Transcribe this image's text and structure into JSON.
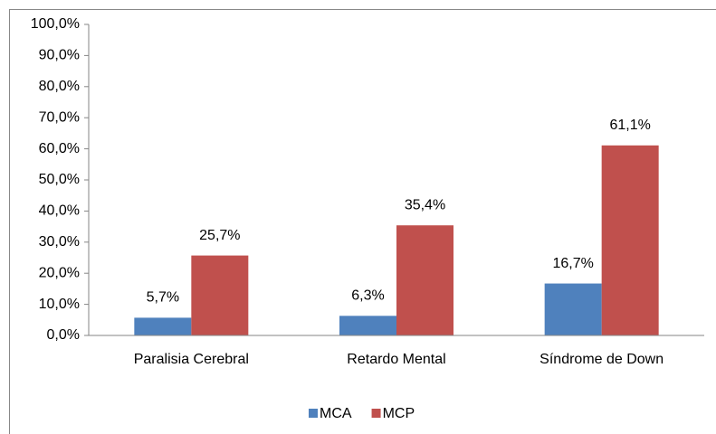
{
  "chart_data": {
    "type": "bar",
    "categories": [
      "Paralisia Cerebral",
      "Retardo Mental",
      "Síndrome de Down"
    ],
    "series": [
      {
        "name": "MCA",
        "color": "#4f81bd",
        "values": [
          5.7,
          6.3,
          16.7
        ],
        "value_labels": [
          "5,7%",
          "6,3%",
          "16,7%"
        ]
      },
      {
        "name": "MCP",
        "color": "#c0504d",
        "values": [
          25.7,
          35.4,
          61.1
        ],
        "value_labels": [
          "25,7%",
          "35,4%",
          "61,1%"
        ]
      }
    ],
    "ylim": [
      0,
      100
    ],
    "yticks": [
      {
        "value": 0,
        "label": "0,0%"
      },
      {
        "value": 10,
        "label": "10,0%"
      },
      {
        "value": 20,
        "label": "20,0%"
      },
      {
        "value": 30,
        "label": "30,0%"
      },
      {
        "value": 40,
        "label": "40,0%"
      },
      {
        "value": 50,
        "label": "50,0%"
      },
      {
        "value": 60,
        "label": "60,0%"
      },
      {
        "value": 70,
        "label": "70,0%"
      },
      {
        "value": 80,
        "label": "80,0%"
      },
      {
        "value": 90,
        "label": "90,0%"
      },
      {
        "value": 100,
        "label": "100,0%"
      }
    ],
    "grid": false,
    "legend": "bottom"
  }
}
